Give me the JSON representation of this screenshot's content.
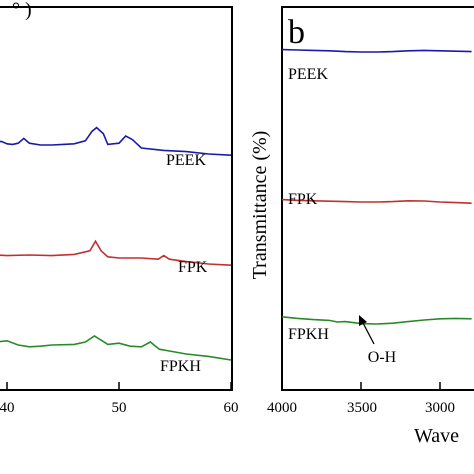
{
  "chart_data": [
    {
      "panel": "a",
      "type": "line",
      "x_axis": {
        "range": [
          35,
          60
        ],
        "ticks": [
          40,
          50,
          60
        ],
        "tick_labels": [
          "40",
          "50",
          "60"
        ],
        "label_partial": "°  )"
      },
      "y_axis": {
        "ticks_visible": false
      },
      "series": [
        {
          "name": "PEEK",
          "color": "#1a1aa6",
          "x": [
            35,
            36,
            37,
            38.5,
            39.5,
            40,
            40.5,
            41,
            41.5,
            42,
            43,
            44,
            45,
            46,
            47,
            47.6,
            48,
            48.6,
            49,
            50,
            50.6,
            51.2,
            52,
            54,
            56,
            58,
            60
          ],
          "y": [
            0.55,
            0.55,
            0.56,
            0.59,
            0.61,
            0.57,
            0.56,
            0.58,
            0.66,
            0.58,
            0.55,
            0.55,
            0.56,
            0.57,
            0.62,
            0.78,
            0.84,
            0.74,
            0.56,
            0.58,
            0.7,
            0.64,
            0.5,
            0.46,
            0.44,
            0.4,
            0.38
          ]
        },
        {
          "name": "FPK",
          "color": "#c03030",
          "x": [
            35,
            36,
            38,
            40,
            42,
            44,
            46,
            47.4,
            47.9,
            48.4,
            49,
            50,
            52,
            53.5,
            54,
            54.5,
            56,
            58,
            60
          ],
          "y": [
            0.58,
            0.6,
            0.56,
            0.54,
            0.55,
            0.54,
            0.56,
            0.62,
            0.78,
            0.62,
            0.52,
            0.5,
            0.5,
            0.48,
            0.54,
            0.48,
            0.44,
            0.4,
            0.38
          ]
        },
        {
          "name": "FPKH",
          "color": "#2a8a2a",
          "x": [
            35,
            36,
            37,
            38,
            39,
            40,
            41,
            42,
            43,
            44,
            46,
            47,
            47.8,
            48.5,
            49,
            50,
            51,
            52,
            52.8,
            53.6,
            54.5,
            56,
            58,
            60
          ],
          "y": [
            0.58,
            0.62,
            0.55,
            0.65,
            0.6,
            0.62,
            0.55,
            0.52,
            0.53,
            0.55,
            0.56,
            0.6,
            0.7,
            0.62,
            0.56,
            0.58,
            0.53,
            0.52,
            0.6,
            0.48,
            0.45,
            0.4,
            0.36,
            0.3
          ]
        }
      ]
    },
    {
      "panel": "b",
      "type": "line",
      "panel_letter": "b",
      "x_axis": {
        "range": [
          4000,
          2600
        ],
        "reversed": true,
        "ticks": [
          4000,
          3500,
          3000
        ],
        "tick_labels": [
          "4000",
          "3500",
          "3000"
        ],
        "label_partial": "Wave"
      },
      "y_axis": {
        "label": "Transmittance (%)"
      },
      "series": [
        {
          "name": "PEEK",
          "color": "#1a1aa6",
          "x": [
            4000,
            3900,
            3800,
            3700,
            3600,
            3500,
            3400,
            3300,
            3200,
            3100,
            3000,
            2900,
            2800
          ],
          "y": [
            0.52,
            0.5,
            0.48,
            0.46,
            0.42,
            0.4,
            0.4,
            0.42,
            0.46,
            0.48,
            0.46,
            0.44,
            0.42
          ]
        },
        {
          "name": "FPK",
          "color": "#c03030",
          "x": [
            4000,
            3900,
            3800,
            3700,
            3600,
            3500,
            3400,
            3300,
            3200,
            3100,
            3000,
            2900,
            2800
          ],
          "y": [
            0.62,
            0.58,
            0.56,
            0.54,
            0.52,
            0.5,
            0.5,
            0.52,
            0.56,
            0.55,
            0.5,
            0.47,
            0.44
          ]
        },
        {
          "name": "FPKH",
          "color": "#2a8a2a",
          "x": [
            4000,
            3900,
            3800,
            3700,
            3650,
            3600,
            3500,
            3400,
            3300,
            3200,
            3100,
            3000,
            2900,
            2800
          ],
          "y": [
            0.66,
            0.58,
            0.52,
            0.48,
            0.4,
            0.42,
            0.32,
            0.3,
            0.34,
            0.42,
            0.5,
            0.56,
            0.58,
            0.56
          ]
        }
      ],
      "annotations": [
        {
          "text": "O-H",
          "arrow_to": 3400
        }
      ]
    }
  ]
}
